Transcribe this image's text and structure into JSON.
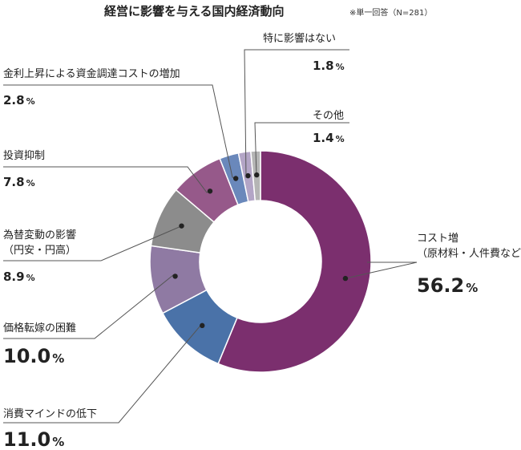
{
  "chart_data": {
    "type": "pie",
    "variant": "donut",
    "title": "経営に影響を与える国内経済動向",
    "note": "※単一回答（N=281）",
    "unit": "%",
    "slices": [
      {
        "label": "コスト増",
        "label2": "（原材料・人件費など）",
        "value": 56.2,
        "display": "56.2",
        "color": "#7b2f6e"
      },
      {
        "label": "消費マインドの低下",
        "value": 11.0,
        "display": "11.0",
        "color": "#4a72a8"
      },
      {
        "label": "価格転嫁の困難",
        "value": 10.0,
        "display": "10.0",
        "color": "#8f7aa3"
      },
      {
        "label": "為替変動の影響",
        "label2": "（円安・円高）",
        "value": 8.9,
        "display": "8.9",
        "color": "#8c8c8c"
      },
      {
        "label": "投資抑制",
        "value": 7.8,
        "display": "7.8",
        "color": "#96598a"
      },
      {
        "label": "金利上昇による資金調達コストの増加",
        "value": 2.8,
        "display": "2.8",
        "color": "#6a88bb"
      },
      {
        "label": "特に影響はない",
        "value": 1.8,
        "display": "1.8",
        "color": "#b3a5c6"
      },
      {
        "label": "その他",
        "value": 1.4,
        "display": "1.4",
        "color": "#b5b5b5"
      }
    ]
  }
}
